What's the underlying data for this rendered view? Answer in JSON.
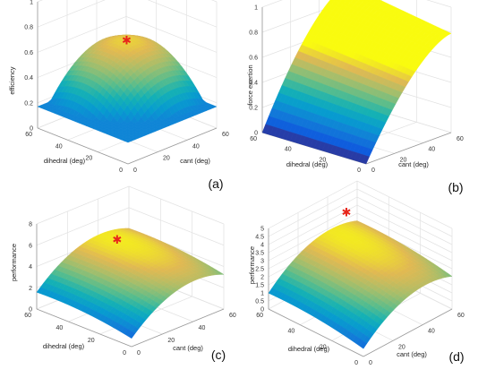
{
  "chart_data": [
    {
      "panel": "(a)",
      "type": "surface",
      "xlabel": "cant (deg)",
      "ylabel": "dihedral (deg)",
      "zlabel": "efficiency",
      "x_ticks": [
        "0",
        "20",
        "40",
        "60"
      ],
      "y_ticks": [
        "0",
        "20",
        "40",
        "60"
      ],
      "z_ticks": [
        "0",
        "0.2",
        "0.4",
        "0.6",
        "0.8",
        "1"
      ],
      "xlim": [
        0,
        60
      ],
      "ylim": [
        0,
        60
      ],
      "zlim": [
        0,
        1
      ],
      "grid": true,
      "colormap": "parula",
      "surface_shape": "dome",
      "optimum_marker": {
        "x": 45,
        "y": 45,
        "z": 0.55,
        "color": "#e8261b"
      }
    },
    {
      "panel": "(b)",
      "type": "surface",
      "xlabel": "cant (deg)",
      "ylabel": "dihedral (deg)",
      "zlabel": "force exertion",
      "x_ticks": [
        "0",
        "20",
        "40",
        "60"
      ],
      "y_ticks": [
        "0",
        "20",
        "40",
        "60"
      ],
      "z_ticks": [
        "0",
        "0.2",
        "0.4",
        "0.6",
        "0.8",
        "1"
      ],
      "xlim": [
        0,
        60
      ],
      "ylim": [
        0,
        60
      ],
      "zlim": [
        0,
        1
      ],
      "grid": true,
      "colormap": "parula",
      "surface_shape": "ramp",
      "optimum_marker": {
        "x": 60,
        "y": 55,
        "z": 0.92,
        "color": "#e8261b"
      }
    },
    {
      "panel": "(c)",
      "type": "surface",
      "xlabel": "cant (deg)",
      "ylabel": "dihedral (deg)",
      "zlabel": "performance",
      "x_ticks": [
        "0",
        "20",
        "40",
        "60"
      ],
      "y_ticks": [
        "0",
        "20",
        "40",
        "60"
      ],
      "z_ticks": [
        "0",
        "2",
        "4",
        "6",
        "8"
      ],
      "xlim": [
        0,
        60
      ],
      "ylim": [
        0,
        60
      ],
      "zlim": [
        0,
        8
      ],
      "grid": true,
      "colormap": "parula",
      "surface_shape": "arch",
      "optimum_marker": {
        "x": 42,
        "y": 50,
        "z": 4.6,
        "color": "#e8261b"
      }
    },
    {
      "panel": "(d)",
      "type": "surface",
      "xlabel": "cant (deg)",
      "ylabel": "dihedral (deg)",
      "zlabel": "performance",
      "x_ticks": [
        "0",
        "20",
        "40",
        "60"
      ],
      "y_ticks": [
        "0",
        "20",
        "40",
        "60"
      ],
      "z_ticks": [
        "0",
        "0.5",
        "1",
        "1.5",
        "2",
        "2.5",
        "3",
        "3.5",
        "4",
        "4.5",
        "5"
      ],
      "xlim": [
        0,
        60
      ],
      "ylim": [
        0,
        60
      ],
      "zlim": [
        0,
        5
      ],
      "grid": true,
      "colormap": "parula",
      "surface_shape": "arch",
      "optimum_marker": {
        "x": 42,
        "y": 50,
        "z": 4.4,
        "color": "#e8261b"
      }
    }
  ]
}
